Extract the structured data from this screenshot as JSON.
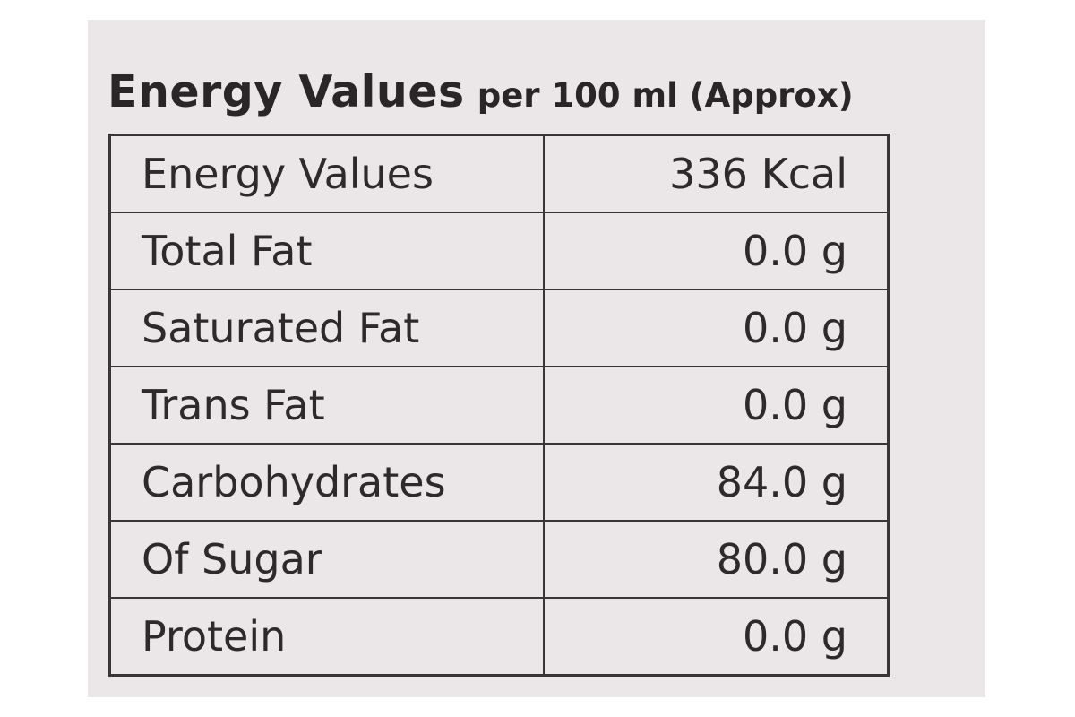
{
  "heading": {
    "main": "Energy Values",
    "sub": "per 100 ml (Approx)"
  },
  "rows": [
    {
      "name": "Energy Values",
      "value": "336 Kcal"
    },
    {
      "name": "Total Fat",
      "value": "0.0 g"
    },
    {
      "name": "Saturated Fat",
      "value": "0.0 g"
    },
    {
      "name": "Trans Fat",
      "value": "0.0 g"
    },
    {
      "name": "Carbohydrates",
      "value": "84.0 g"
    },
    {
      "name": "Of Sugar",
      "value": "80.0 g"
    },
    {
      "name": "Protein",
      "value": "0.0 g"
    }
  ],
  "colors": {
    "label_background": "#ebe6e7",
    "ink": "#2e2a2b",
    "page_background": "#ffffff"
  }
}
